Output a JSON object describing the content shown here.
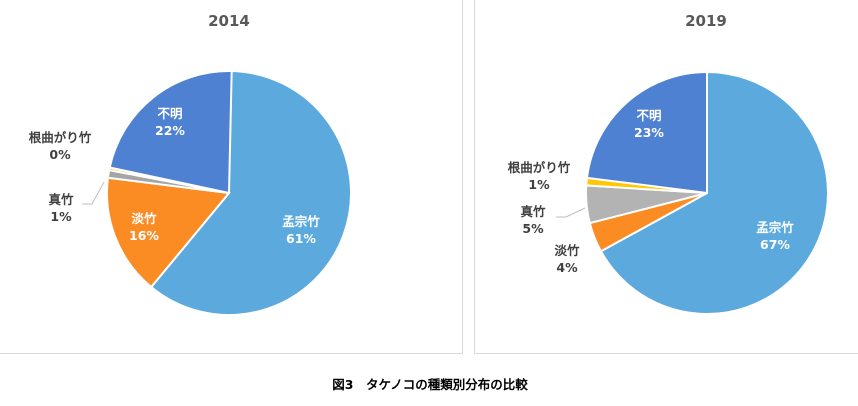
{
  "chart_data": [
    {
      "type": "pie",
      "title": "2014",
      "slices": [
        {
          "label": "孟宗竹",
          "value": 61,
          "display": "61%",
          "color": "#5BA9DD"
        },
        {
          "label": "淡竹",
          "value": 16,
          "display": "16%",
          "color": "#FB8C23"
        },
        {
          "label": "真竹",
          "value": 1,
          "display": "1%",
          "color": "#A5A5A5"
        },
        {
          "label": "根曲がり竹",
          "value": 0,
          "display": "0%",
          "color": "#FFC000"
        },
        {
          "label": "不明",
          "value": 22,
          "display": "22%",
          "color": "#4E81D2"
        }
      ]
    },
    {
      "type": "pie",
      "title": "2019",
      "slices": [
        {
          "label": "孟宗竹",
          "value": 67,
          "display": "67%",
          "color": "#5BA9DD"
        },
        {
          "label": "淡竹",
          "value": 4,
          "display": "4%",
          "color": "#FB8C23"
        },
        {
          "label": "真竹",
          "value": 5,
          "display": "5%",
          "color": "#B3B3B3"
        },
        {
          "label": "根曲がり竹",
          "value": 1,
          "display": "1%",
          "color": "#FFC700"
        },
        {
          "label": "不明",
          "value": 23,
          "display": "23%",
          "color": "#4E81D2"
        }
      ]
    }
  ],
  "caption": "図3　タケノコの種類別分布の比較"
}
